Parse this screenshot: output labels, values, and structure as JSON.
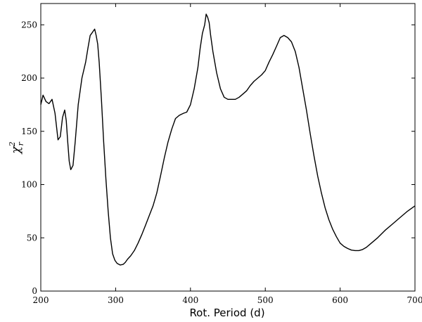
{
  "chart_data": {
    "type": "line",
    "title": "",
    "xlabel": "Rot. Period (d)",
    "ylabel": {
      "symbol": "χ",
      "superscript": "2",
      "subscript": "r"
    },
    "xlim": [
      200,
      700
    ],
    "ylim": [
      0,
      270
    ],
    "xticks": [
      200,
      300,
      400,
      500,
      600,
      700
    ],
    "yticks": [
      0,
      50,
      100,
      150,
      200,
      250
    ],
    "grid": false,
    "series": [
      {
        "x": [
          200,
          203,
          207,
          211,
          215,
          219,
          223,
          226,
          229,
          232,
          234,
          236,
          238,
          240,
          243,
          246,
          250,
          255,
          260,
          263,
          266,
          268,
          270,
          272,
          274,
          276,
          278,
          281,
          284,
          287,
          290,
          293,
          296,
          299,
          302,
          306,
          310,
          313,
          316,
          320,
          325,
          330,
          335,
          340,
          345,
          350,
          355,
          360,
          365,
          370,
          375,
          380,
          385,
          388,
          391,
          395,
          400,
          405,
          410,
          413,
          416,
          419,
          421,
          423,
          425,
          427,
          430,
          435,
          440,
          445,
          450,
          455,
          460,
          465,
          470,
          475,
          480,
          485,
          490,
          495,
          500,
          505,
          510,
          515,
          520,
          525,
          530,
          535,
          540,
          545,
          550,
          555,
          560,
          565,
          570,
          575,
          580,
          585,
          590,
          595,
          600,
          605,
          610,
          615,
          620,
          625,
          630,
          635,
          640,
          650,
          660,
          670,
          680,
          690,
          700
        ],
        "y": [
          175,
          184,
          178,
          176,
          180,
          167,
          142,
          145,
          163,
          170,
          160,
          140,
          122,
          114,
          118,
          140,
          175,
          200,
          215,
          228,
          240,
          242,
          244,
          246,
          240,
          232,
          215,
          180,
          140,
          105,
          75,
          50,
          35,
          29,
          26,
          24.5,
          25,
          27,
          30,
          33,
          38,
          45,
          53,
          62,
          71,
          80,
          92,
          108,
          125,
          140,
          152,
          162,
          165,
          166,
          167,
          168,
          175,
          190,
          210,
          228,
          242,
          250,
          260,
          257,
          252,
          240,
          225,
          205,
          190,
          182,
          180,
          180,
          180,
          182,
          185,
          188,
          193,
          197,
          200,
          203,
          207,
          215,
          222,
          230,
          238,
          240,
          238,
          234,
          225,
          210,
          190,
          170,
          148,
          127,
          108,
          92,
          78,
          67,
          58,
          51,
          45,
          42,
          40,
          38.5,
          38,
          38,
          39,
          41,
          44,
          50,
          57,
          63,
          69,
          75,
          80
        ]
      }
    ]
  }
}
